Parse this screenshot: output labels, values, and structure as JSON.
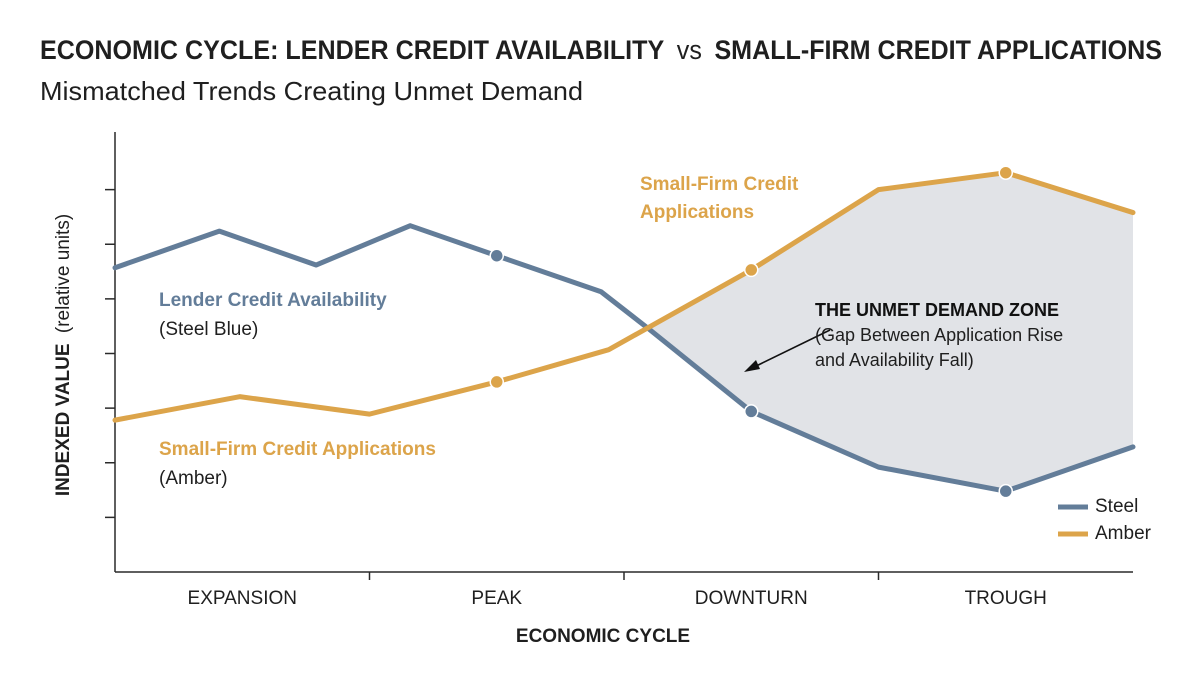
{
  "chart_data": {
    "type": "line",
    "title": [
      "ECONOMIC CYCLE: LENDER CREDIT AVAILABILITY",
      "vs",
      "SMALL-FIRM CREDIT APPLICATIONS"
    ],
    "subtitle": "Mismatched Trends Creating Unmet Demand",
    "ylabel": "INDEXED VALUE",
    "ylabel_note": "(relative units)",
    "xlabel": "ECONOMIC CYCLE",
    "categories": [
      "EXPANSION",
      "PEAK",
      "DOWNTURN",
      "TROUGH"
    ],
    "xlim": [
      0,
      4
    ],
    "xticks": [
      1,
      2,
      3
    ],
    "ylim": [
      0,
      8
    ],
    "yticks": [
      1,
      2,
      3,
      4,
      5,
      6,
      7
    ],
    "grid": false,
    "legend": "lower right",
    "gap_color": "#e1e3e7",
    "series": [
      {
        "name": "Steel",
        "color": "#637d99",
        "x": [
          0,
          0.41,
          0.79,
          1.16,
          1.5,
          1.91,
          2.1,
          2.5,
          3.0,
          3.5,
          4.0
        ],
        "values": [
          5.57,
          6.24,
          5.62,
          6.34,
          5.79,
          5.13,
          4.44,
          2.94,
          1.92,
          1.48,
          2.29
        ]
      },
      {
        "name": "Amber",
        "color": "#dca44a",
        "x": [
          0,
          0.49,
          1.0,
          1.5,
          1.94,
          2.5,
          3.0,
          3.5,
          4.0
        ],
        "values": [
          2.78,
          3.21,
          2.89,
          3.48,
          4.07,
          5.53,
          7.0,
          7.31,
          6.58
        ]
      }
    ],
    "annotations": [
      {
        "lines": [
          "Lender Credit Availability",
          "(Steel Blue)"
        ]
      },
      {
        "lines": [
          "Small-Firm Credit Applications",
          "(Amber)"
        ]
      },
      {
        "lines": [
          "Small-Firm Credit",
          "Applications"
        ]
      },
      {
        "lines": [
          "THE UNMET DEMAND ZONE",
          "(Gap Between Application Rise",
          "and Availability Fall)"
        ]
      }
    ]
  }
}
